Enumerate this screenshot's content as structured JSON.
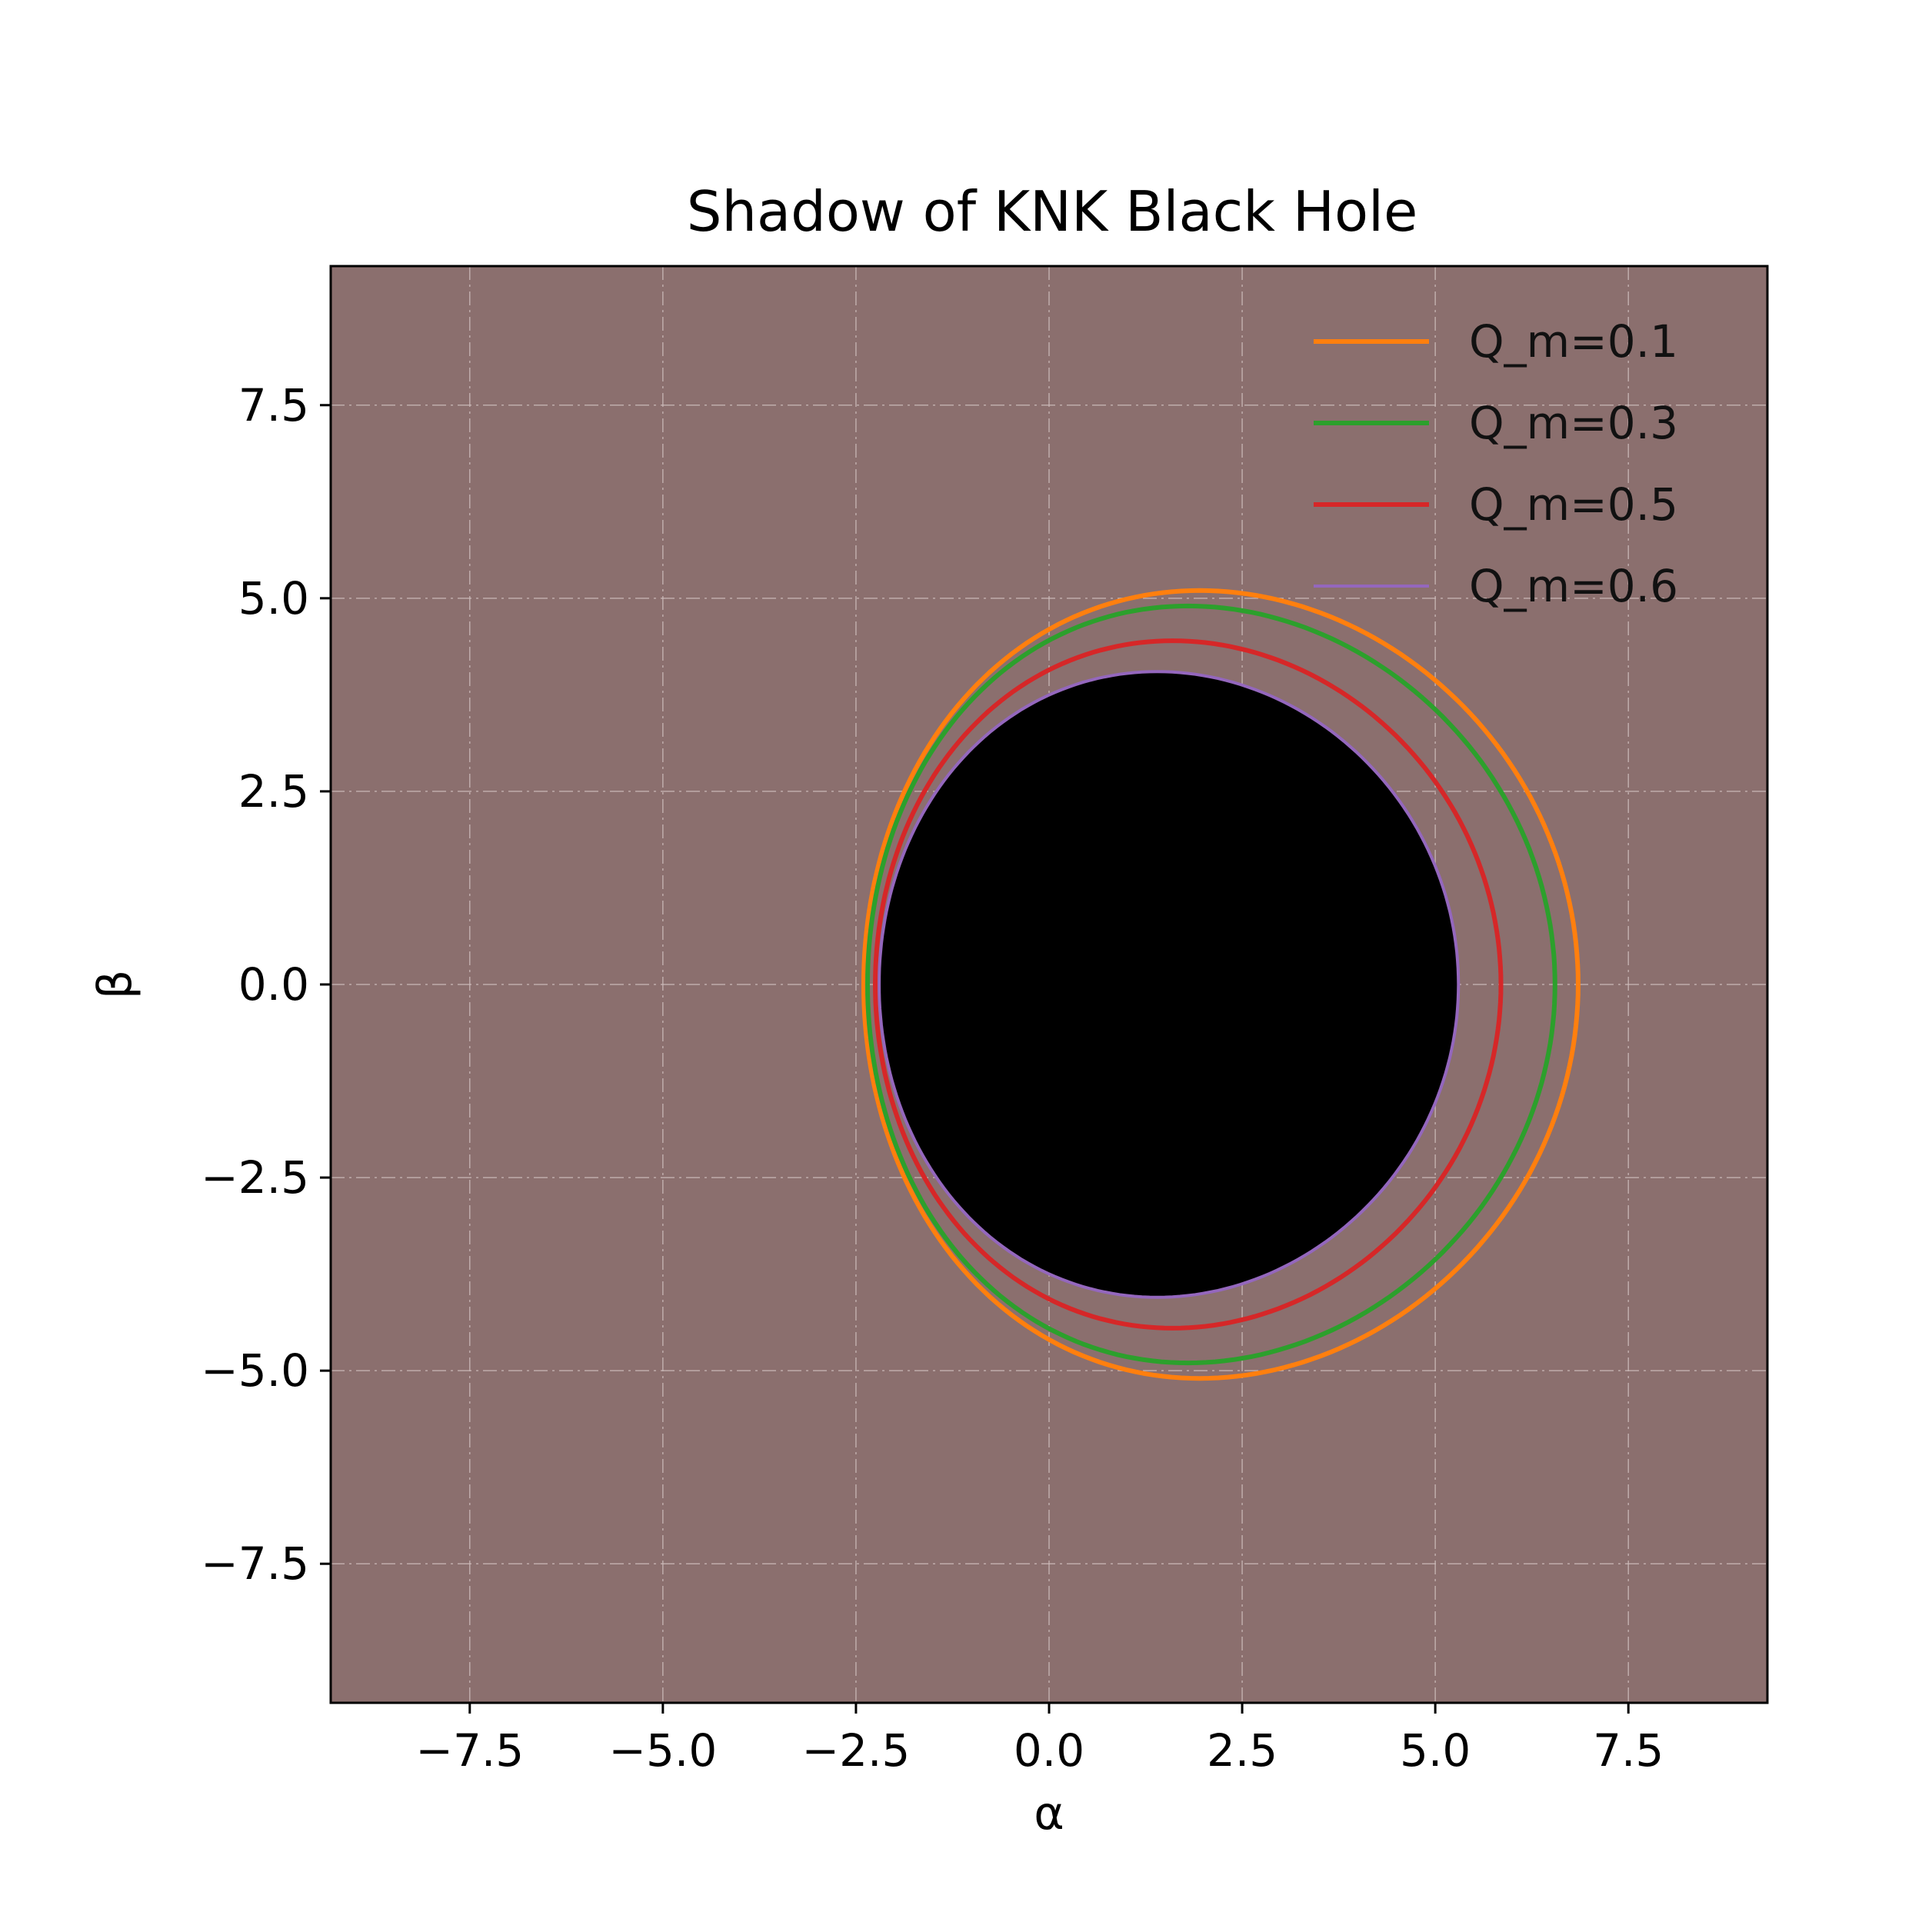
{
  "chart_data": {
    "type": "line",
    "title": "Shadow of KNK Black Hole",
    "xlabel": "α",
    "ylabel": "β",
    "xlim": [
      -9.3,
      9.3
    ],
    "ylim": [
      -9.3,
      9.3
    ],
    "xticks": [
      -7.5,
      -5.0,
      -2.5,
      0.0,
      2.5,
      5.0,
      7.5
    ],
    "yticks": [
      -7.5,
      -5.0,
      -2.5,
      0.0,
      2.5,
      5.0,
      7.5
    ],
    "xtick_labels": [
      "−7.5",
      "−5.0",
      "−2.5",
      "0.0",
      "2.5",
      "5.0",
      "7.5"
    ],
    "ytick_labels": [
      "−7.5",
      "−5.0",
      "−2.5",
      "0.0",
      "2.5",
      "5.0",
      "7.5"
    ],
    "grid": true,
    "grid_style": "dash-dot",
    "background_color": "#8b6f6e",
    "shadow_fill_color": "#000000",
    "legend_position": "top-right",
    "series": [
      {
        "name": "Q_m=0.1",
        "color": "#ff7f0e",
        "shape": "closed-curve",
        "alpha_min": -2.4,
        "alpha_max": 6.85,
        "beta_max": 5.1,
        "alpha_at_beta_max": 1.95
      },
      {
        "name": "Q_m=0.3",
        "color": "#2ca02c",
        "shape": "closed-curve",
        "alpha_min": -2.35,
        "alpha_max": 6.55,
        "beta_max": 4.9,
        "alpha_at_beta_max": 1.8
      },
      {
        "name": "Q_m=0.5",
        "color": "#d62728",
        "shape": "closed-curve",
        "alpha_min": -2.25,
        "alpha_max": 5.85,
        "beta_max": 4.45,
        "alpha_at_beta_max": 1.6
      },
      {
        "name": "Q_m=0.6",
        "color": "#9467bd",
        "shape": "closed-curve",
        "alpha_min": -2.2,
        "alpha_max": 5.3,
        "beta_max": 4.05,
        "alpha_at_beta_max": 1.4
      }
    ]
  }
}
